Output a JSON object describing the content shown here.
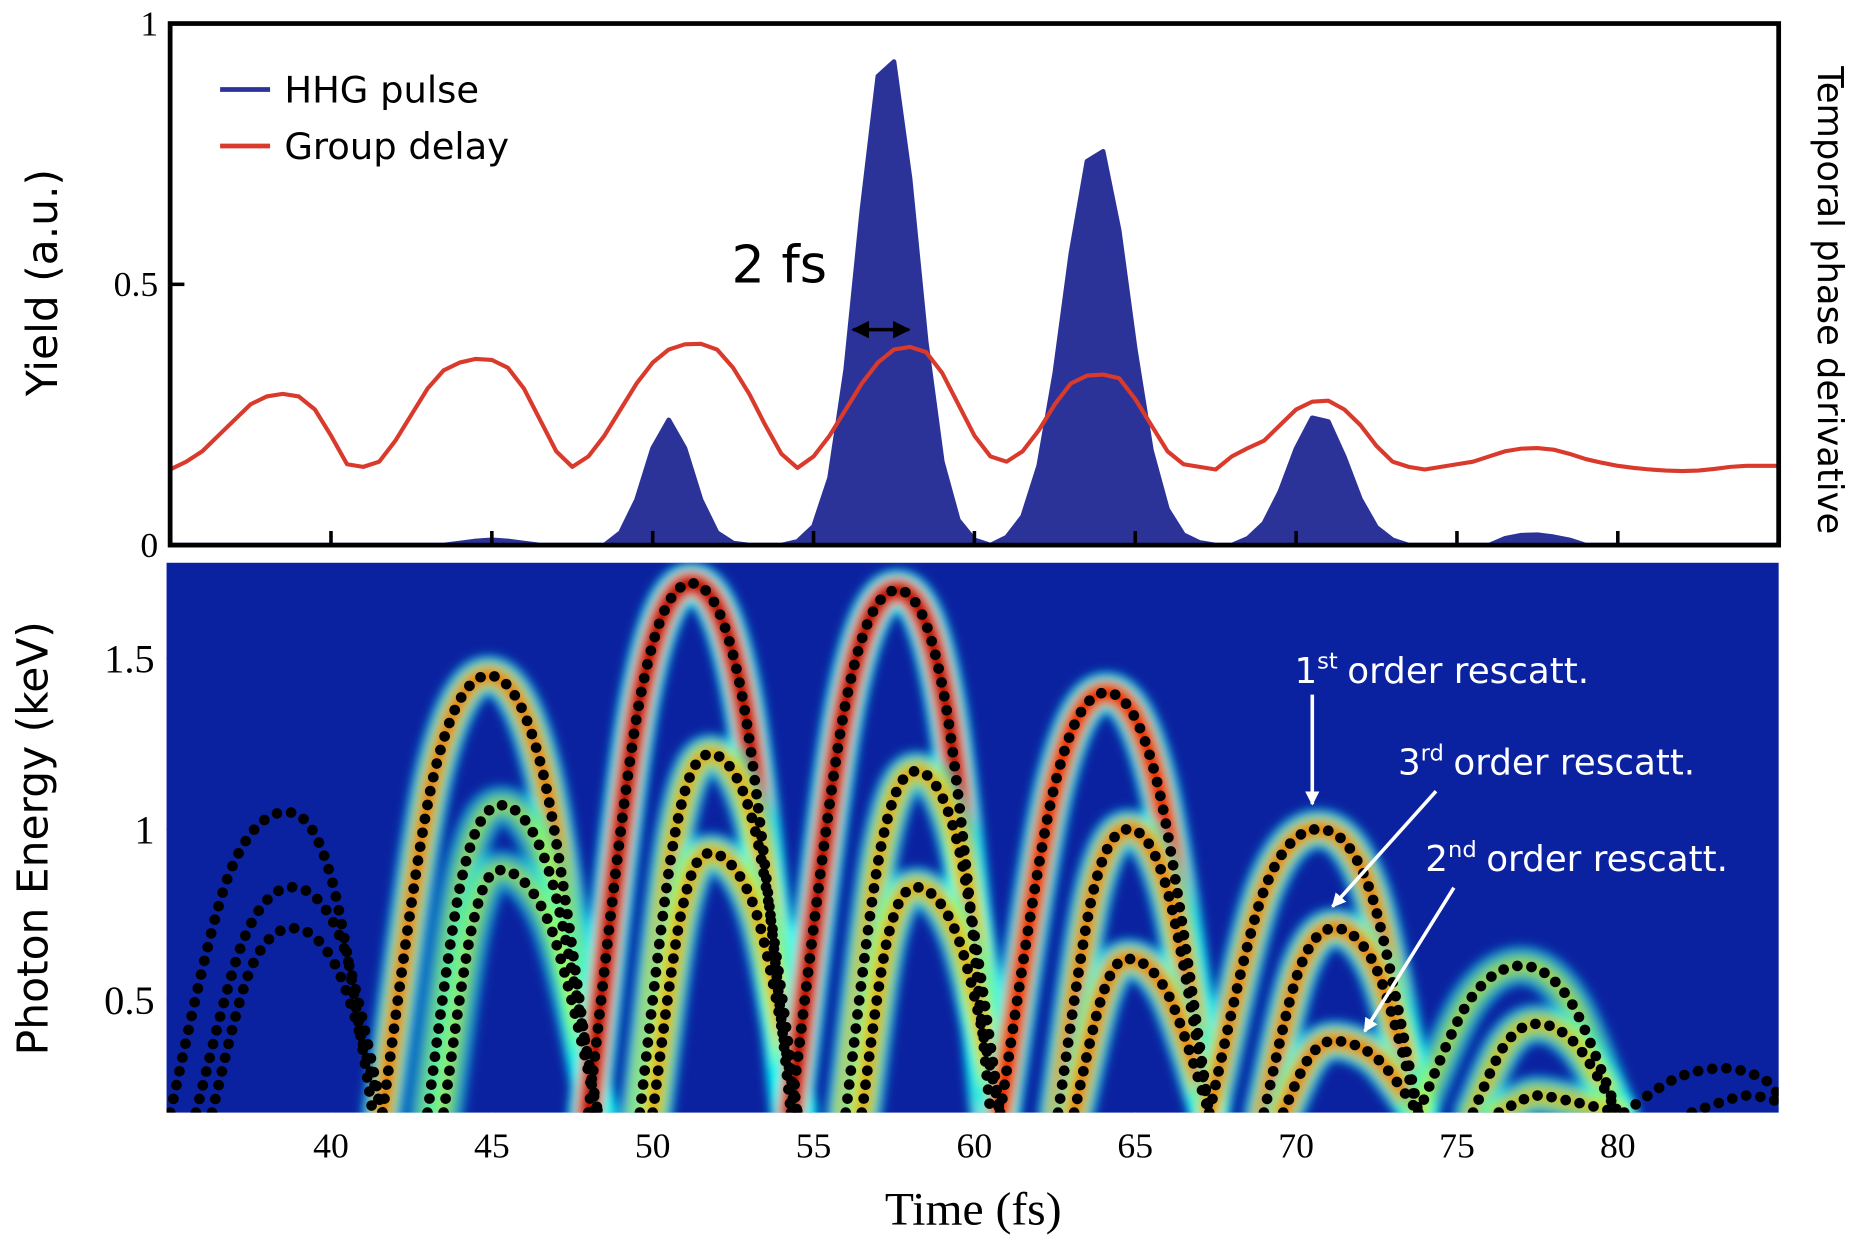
{
  "chart_data": [
    {
      "type": "line",
      "y_label": "Yield (a.u.)",
      "y2_label": "Temporal phase derivative",
      "annotation": "2 fs",
      "xlim": [
        35,
        85
      ],
      "ylim": [
        0,
        1
      ],
      "xticks": [
        40,
        45,
        50,
        55,
        60,
        65,
        70,
        75,
        80
      ],
      "yticks": [
        0,
        0.5,
        1
      ],
      "legend": "upper left",
      "x": [
        35,
        35.5,
        36,
        36.5,
        37,
        37.5,
        38,
        38.5,
        39,
        39.5,
        40,
        40.5,
        41,
        41.5,
        42,
        42.5,
        43,
        43.5,
        44,
        44.5,
        45,
        45.5,
        46,
        46.5,
        47,
        47.5,
        48,
        48.5,
        49,
        49.5,
        50,
        50.5,
        51,
        51.5,
        52,
        52.5,
        53,
        53.5,
        54,
        54.5,
        55,
        55.5,
        56,
        56.5,
        57,
        57.5,
        58,
        58.5,
        59,
        59.5,
        60,
        60.5,
        61,
        61.5,
        62,
        62.5,
        63,
        63.5,
        64,
        64.5,
        65,
        65.5,
        66,
        66.5,
        67,
        67.5,
        68,
        68.5,
        69,
        69.5,
        70,
        70.5,
        71,
        71.5,
        72,
        72.5,
        73,
        73.5,
        74,
        74.5,
        75,
        75.5,
        76,
        76.5,
        77,
        77.5,
        78,
        78.5,
        79,
        79.5,
        80,
        80.5,
        81,
        81.5,
        82,
        82.5,
        83,
        83.5,
        84,
        84.5,
        85
      ],
      "series": [
        {
          "name": "HHG pulse",
          "color": "#2b3399",
          "fill": true,
          "values": [
            0,
            0,
            0,
            0,
            0,
            0,
            0,
            0,
            0,
            0,
            0,
            0,
            0,
            0,
            0,
            0,
            0,
            0,
            0.004,
            0.008,
            0.01,
            0.008,
            0.004,
            0,
            0,
            0,
            0,
            0,
            0.024,
            0.087,
            0.186,
            0.24,
            0.186,
            0.087,
            0.024,
            0.004,
            0,
            0,
            0,
            0.007,
            0.036,
            0.129,
            0.336,
            0.64,
            0.899,
            0.927,
            0.702,
            0.39,
            0.16,
            0.048,
            0.01,
            0,
            0.015,
            0.055,
            0.152,
            0.33,
            0.559,
            0.736,
            0.755,
            0.603,
            0.375,
            0.182,
            0.069,
            0.02,
            0.005,
            0,
            0,
            0.013,
            0.042,
            0.103,
            0.185,
            0.244,
            0.237,
            0.169,
            0.088,
            0.034,
            0.01,
            0,
            0,
            0,
            0,
            0,
            0,
            0.013,
            0.019,
            0.02,
            0.016,
            0.01,
            0,
            0,
            0,
            0,
            0,
            0,
            0,
            0,
            0,
            0,
            0,
            0,
            0
          ]
        },
        {
          "name": "Group delay",
          "color": "#d93a2b",
          "fill": false,
          "values": [
            0.145,
            0.16,
            0.18,
            0.21,
            0.24,
            0.27,
            0.285,
            0.29,
            0.285,
            0.26,
            0.21,
            0.155,
            0.15,
            0.16,
            0.2,
            0.25,
            0.3,
            0.335,
            0.35,
            0.357,
            0.355,
            0.34,
            0.3,
            0.24,
            0.18,
            0.15,
            0.17,
            0.21,
            0.26,
            0.31,
            0.35,
            0.375,
            0.385,
            0.386,
            0.375,
            0.34,
            0.29,
            0.23,
            0.175,
            0.148,
            0.17,
            0.21,
            0.26,
            0.31,
            0.35,
            0.375,
            0.38,
            0.37,
            0.33,
            0.27,
            0.21,
            0.17,
            0.16,
            0.18,
            0.22,
            0.27,
            0.31,
            0.325,
            0.327,
            0.32,
            0.28,
            0.23,
            0.18,
            0.155,
            0.15,
            0.145,
            0.17,
            0.186,
            0.2,
            0.23,
            0.26,
            0.275,
            0.277,
            0.26,
            0.23,
            0.19,
            0.16,
            0.15,
            0.145,
            0.15,
            0.155,
            0.16,
            0.17,
            0.18,
            0.185,
            0.186,
            0.183,
            0.175,
            0.165,
            0.158,
            0.152,
            0.148,
            0.145,
            0.143,
            0.142,
            0.143,
            0.146,
            0.15,
            0.152,
            0.152,
            0.152
          ]
        }
      ]
    },
    {
      "type": "heatmap",
      "x_label": "Time (fs)",
      "y_label": "Photon Energy (keV)",
      "xlim": [
        35,
        85
      ],
      "ylim": [
        0.17,
        1.78
      ],
      "xticks": [
        40,
        45,
        50,
        55,
        60,
        65,
        70,
        75,
        80
      ],
      "yticks": [
        0.5,
        1,
        1.5
      ],
      "background": "#0b22a0",
      "dot_color": "#000000",
      "annotations": [
        {
          "number": "1",
          "suffix": "st",
          "text": "order rescatt."
        },
        {
          "number": "3",
          "suffix": "rd",
          "text": "order rescatt."
        },
        {
          "number": "2",
          "suffix": "nd",
          "text": "order rescatt."
        }
      ],
      "series": [
        {
          "intensity": 0,
          "x": [
            35,
            36.8,
            38.6,
            40,
            41.3
          ],
          "y": [
            0.17,
            0.86,
            1.05,
            0.86,
            0.17
          ]
        },
        {
          "intensity": 0,
          "x": [
            35.8,
            37.3,
            38.8,
            40.3,
            41.6
          ],
          "y": [
            0.17,
            0.68,
            0.83,
            0.68,
            0.17
          ]
        },
        {
          "intensity": 0,
          "x": [
            36.3,
            37.5,
            38.8,
            40.2,
            41.6
          ],
          "y": [
            0.17,
            0.59,
            0.71,
            0.59,
            0.17
          ]
        },
        {
          "intensity": 0.6,
          "x": [
            41.6,
            43.2,
            44.9,
            46.6,
            48.2
          ],
          "y": [
            0.17,
            1.16,
            1.45,
            1.16,
            0.17
          ]
        },
        {
          "intensity": 0.2,
          "x": [
            43,
            44.1,
            45.3,
            46.8,
            48.3
          ],
          "y": [
            0.17,
            0.87,
            1.07,
            0.87,
            0.17
          ]
        },
        {
          "intensity": 0.2,
          "x": [
            43.5,
            44.4,
            45.3,
            46.8,
            48.3
          ],
          "y": [
            0.17,
            0.72,
            0.88,
            0.72,
            0.17
          ]
        },
        {
          "intensity": 1,
          "x": [
            48,
            49.6,
            51.2,
            52.8,
            54.3
          ],
          "y": [
            0.17,
            1.38,
            1.72,
            1.38,
            0.17
          ]
        },
        {
          "intensity": 0.5,
          "x": [
            49.6,
            50.7,
            51.8,
            53.2,
            54.5
          ],
          "y": [
            0.17,
            0.99,
            1.22,
            0.99,
            0.17
          ]
        },
        {
          "intensity": 0.5,
          "x": [
            50,
            50.9,
            51.8,
            53.2,
            54.5
          ],
          "y": [
            0.17,
            0.76,
            0.93,
            0.76,
            0.17
          ]
        },
        {
          "intensity": 1,
          "x": [
            54.3,
            56,
            57.6,
            59.1,
            60.5
          ],
          "y": [
            0.17,
            1.37,
            1.7,
            1.37,
            0.17
          ]
        },
        {
          "intensity": 0.5,
          "x": [
            56,
            57.1,
            58.2,
            59.5,
            60.8
          ],
          "y": [
            0.17,
            0.95,
            1.17,
            0.95,
            0.17
          ]
        },
        {
          "intensity": 0.5,
          "x": [
            56.5,
            57.3,
            58.2,
            59.5,
            60.8
          ],
          "y": [
            0.17,
            0.68,
            0.83,
            0.68,
            0.17
          ]
        },
        {
          "intensity": 0.85,
          "x": [
            60.8,
            62.5,
            64.1,
            65.7,
            67.3
          ],
          "y": [
            0.17,
            1.13,
            1.4,
            1.13,
            0.17
          ]
        },
        {
          "intensity": 0.6,
          "x": [
            62.6,
            63.7,
            64.8,
            66,
            67.3
          ],
          "y": [
            0.17,
            0.82,
            1,
            0.82,
            0.17
          ]
        },
        {
          "intensity": 0.6,
          "x": [
            63.1,
            64,
            64.8,
            66,
            67.3
          ],
          "y": [
            0.17,
            0.52,
            0.62,
            0.52,
            0.17
          ]
        },
        {
          "intensity": 0.6,
          "x": [
            67.3,
            69,
            70.7,
            72.3,
            73.8
          ],
          "y": [
            0.17,
            0.82,
            1,
            0.82,
            0.17
          ]
        },
        {
          "intensity": 0.6,
          "x": [
            69,
            70.1,
            71.2,
            72.5,
            73.8
          ],
          "y": [
            0.17,
            0.59,
            0.71,
            0.59,
            0.17
          ]
        },
        {
          "intensity": 0.6,
          "x": [
            69.6,
            70.4,
            71.2,
            72.5,
            73.8
          ],
          "y": [
            0.17,
            0.33,
            0.38,
            0.33,
            0.17
          ]
        },
        {
          "intensity": 0.25,
          "x": [
            73.8,
            75.4,
            77,
            78.5,
            80
          ],
          "y": [
            0.17,
            0.5,
            0.6,
            0.5,
            0.17
          ]
        },
        {
          "intensity": 0.4,
          "x": [
            75.5,
            76.5,
            77.5,
            78.7,
            80
          ],
          "y": [
            0.17,
            0.37,
            0.43,
            0.37,
            0.17
          ]
        },
        {
          "intensity": 0.4,
          "x": [
            76.3,
            76.9,
            77.5,
            78.7,
            80
          ],
          "y": [
            0.17,
            0.2,
            0.22,
            0.2,
            0.17
          ]
        },
        {
          "intensity": 0,
          "x": [
            80.2,
            81.8,
            83.3,
            84.5,
            85
          ],
          "y": [
            0.17,
            0.27,
            0.3,
            0.27,
            0.22
          ]
        },
        {
          "intensity": 0,
          "x": [
            82.3,
            83.2,
            84,
            84.7,
            85
          ],
          "y": [
            0.17,
            0.2,
            0.22,
            0.21,
            0.2
          ]
        }
      ]
    }
  ]
}
